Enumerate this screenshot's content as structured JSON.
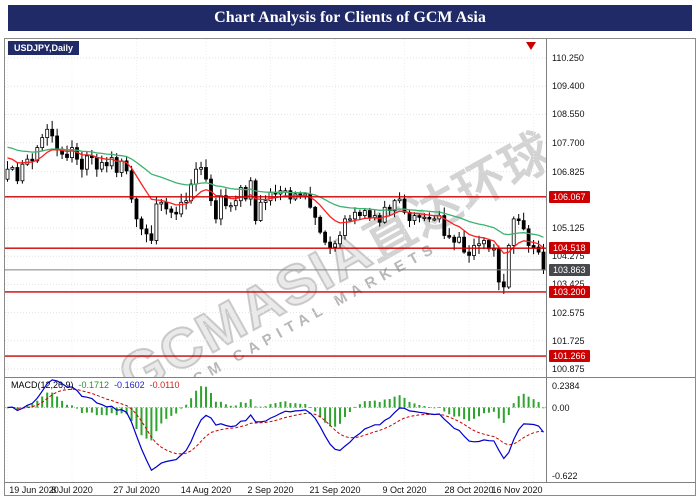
{
  "header": {
    "title": "Chart Analysis for Clients of GCM Asia",
    "bg": "#1f2a66"
  },
  "chart": {
    "symbol_label": "USDJPY,Daily",
    "symbol_bg": "#1f2a66",
    "watermark": {
      "main": "GCMASIA",
      "cjk": "直达环球",
      "sub": "GCM CAPITAL MARKETS"
    },
    "marker_color": "#cc0000"
  },
  "chart_data": {
    "type": "candlestick",
    "symbol": "USDJPY",
    "timeframe": "Daily",
    "title": "USDJPY,Daily",
    "price_range": {
      "min": 100.635,
      "max": 110.823
    },
    "grid_color": "#e2e2e2",
    "first_open": 106.6,
    "closes": [
      106.9,
      106.95,
      106.55,
      107.05,
      107.2,
      107.15,
      107.55,
      107.85,
      108.1,
      107.9,
      107.5,
      107.35,
      107.25,
      107.55,
      107.2,
      106.9,
      107.3,
      107.25,
      106.9,
      107.1,
      107.0,
      107.25,
      106.8,
      107.15,
      106.85,
      106.0,
      105.4,
      105.1,
      104.95,
      104.75,
      105.85,
      105.9,
      105.7,
      105.6,
      105.55,
      105.9,
      105.95,
      106.45,
      106.9,
      106.95,
      106.6,
      105.95,
      105.4,
      106.1,
      105.8,
      105.8,
      105.95,
      106.35,
      106.0,
      106.55,
      105.35,
      105.9,
      105.95,
      106.2,
      106.15,
      106.25,
      106.25,
      106.0,
      106.15,
      106.1,
      106.15,
      105.75,
      105.45,
      105.0,
      104.7,
      104.55,
      104.65,
      104.9,
      105.4,
      105.4,
      105.6,
      105.5,
      105.65,
      105.45,
      105.5,
      105.3,
      105.75,
      105.65,
      105.95,
      106.0,
      105.6,
      105.35,
      105.5,
      105.45,
      105.45,
      105.4,
      105.4,
      105.5,
      104.9,
      104.85,
      104.7,
      104.85,
      104.4,
      104.3,
      104.6,
      104.65,
      104.75,
      104.5,
      104.5,
      103.5,
      103.35,
      104.6,
      105.4,
      105.35,
      105.1,
      104.6,
      104.55,
      104.4,
      103.86
    ],
    "x_ticks": [
      {
        "label": "19 Jun 2020",
        "i": 0
      },
      {
        "label": "8 Jul 2020",
        "i": 13
      },
      {
        "label": "27 Jul 2020",
        "i": 26
      },
      {
        "label": "14 Aug 2020",
        "i": 40
      },
      {
        "label": "2 Sep 2020",
        "i": 53
      },
      {
        "label": "21 Sep 2020",
        "i": 66
      },
      {
        "label": "9 Oct 2020",
        "i": 80
      },
      {
        "label": "28 Oct 2020",
        "i": 93
      },
      {
        "label": "16 Nov 2020",
        "i": 106
      }
    ],
    "price_axis_ticks": [
      {
        "label": "110.250",
        "v": 110.25
      },
      {
        "label": "109.400",
        "v": 109.4
      },
      {
        "label": "108.550",
        "v": 108.55
      },
      {
        "label": "107.700",
        "v": 107.7
      },
      {
        "label": "106.825",
        "v": 106.825
      },
      {
        "label": "105.125",
        "v": 105.125
      },
      {
        "label": "104.275",
        "v": 104.275
      },
      {
        "label": "103.425",
        "v": 103.425
      },
      {
        "label": "102.575",
        "v": 102.575
      },
      {
        "label": "101.725",
        "v": 101.725
      },
      {
        "label": "100.875",
        "v": 100.875
      }
    ],
    "hidden_grid_values": [
      105.975
    ],
    "levels": [
      {
        "label": "106.067",
        "v": 106.067
      },
      {
        "label": "104.518",
        "v": 104.518
      },
      {
        "label": "103.200",
        "v": 103.2
      },
      {
        "label": "101.266",
        "v": 101.266
      }
    ],
    "level_color": "#cc0000",
    "current_price": {
      "label": "103.863",
      "v": 103.863,
      "badge_bg": "#46484c",
      "line_color": "#808080"
    },
    "moving_averages": [
      {
        "period": 34,
        "seed": 107.6,
        "color": "#3cb371"
      },
      {
        "period": 12,
        "seed": 107.3,
        "color": "#ff2020"
      }
    ],
    "candle_up_fill": "#ffffff",
    "candle_down_fill": "#000000",
    "candle_stroke": "#000000",
    "macd": {
      "label": "MACD(12,26,9)",
      "fast": 12,
      "slow": 26,
      "signal": 9,
      "values": [
        {
          "text": "-0.1712",
          "color": "#2e8b2e"
        },
        {
          "text": "-0.1602",
          "color": "#2222cc"
        },
        {
          "text": "-0.0110",
          "color": "#cc2222"
        }
      ],
      "axis": {
        "max_label": "0.2384",
        "zero_label": "0.00",
        "min_label": "-0.622",
        "max": 0.2384,
        "min": -0.622
      },
      "hist_color": "#2fa32f",
      "line_color": "#0000cc",
      "signal_color": "#cc0000"
    }
  }
}
